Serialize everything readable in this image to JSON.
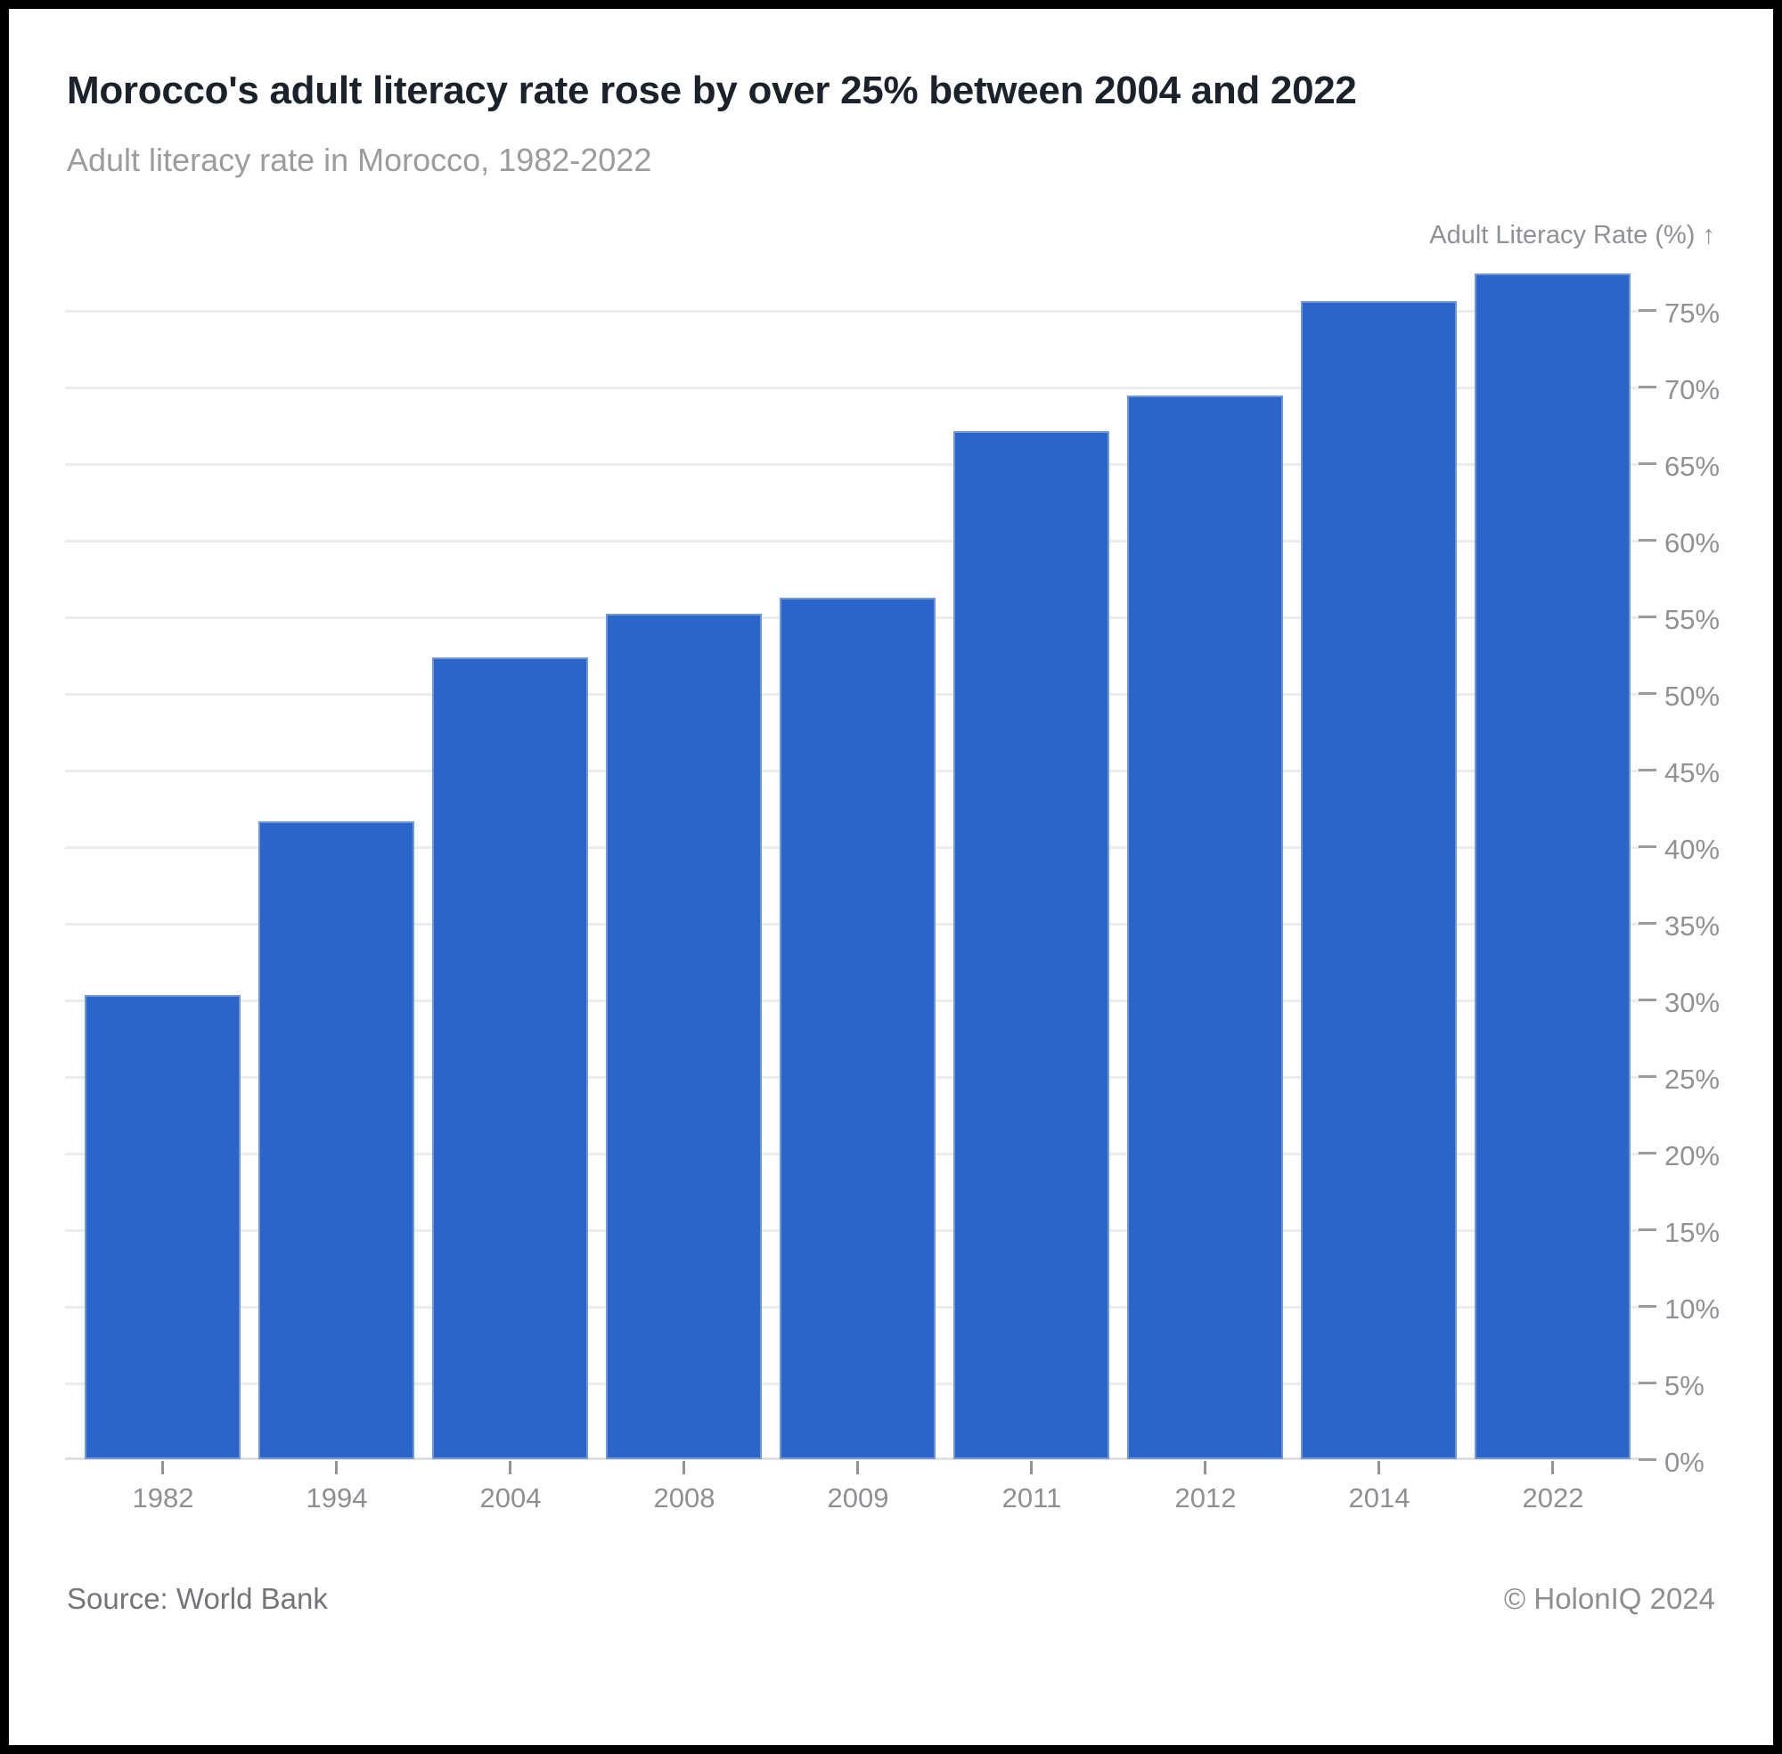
{
  "header": {
    "title": "Morocco's adult literacy rate rose by over 25% between 2004 and 2022",
    "subtitle": "Adult literacy rate in Morocco, 1982-2022"
  },
  "y_axis": {
    "label": "Adult Literacy Rate (%) ↑"
  },
  "footer": {
    "source": "Source: World Bank",
    "copyright": "© HolonIQ 2024"
  },
  "colors": {
    "bar": "#2c65ca",
    "title_text": "#1b222c",
    "subtitle_text": "#9a9c9e",
    "axis_text": "#8e9196",
    "gridline": "#ececec",
    "axis_line": "#e0e0e0",
    "frame": "#000000",
    "card_bg": "#ffffff"
  },
  "chart_data": {
    "type": "bar",
    "title": "Morocco's adult literacy rate rose by over 25% between 2004 and 2022",
    "subtitle": "Adult literacy rate in Morocco, 1982-2022",
    "xlabel": "",
    "ylabel": "Adult Literacy Rate (%) ↑",
    "categories": [
      "1982",
      "1994",
      "2004",
      "2008",
      "2009",
      "2011",
      "2012",
      "2014",
      "2022"
    ],
    "values": [
      30.3,
      41.6,
      52.3,
      55.2,
      56.2,
      67.1,
      69.4,
      75.6,
      77.4
    ],
    "unit": "%",
    "ylim": [
      0,
      77.5
    ],
    "yticks": [
      0,
      5,
      10,
      15,
      20,
      25,
      30,
      35,
      40,
      45,
      50,
      55,
      60,
      65,
      70,
      75
    ],
    "ytick_suffix": "%",
    "ytick_side": "right",
    "grid": "horizontal",
    "legend": "none",
    "source": "World Bank",
    "attribution": "© HolonIQ 2024"
  }
}
